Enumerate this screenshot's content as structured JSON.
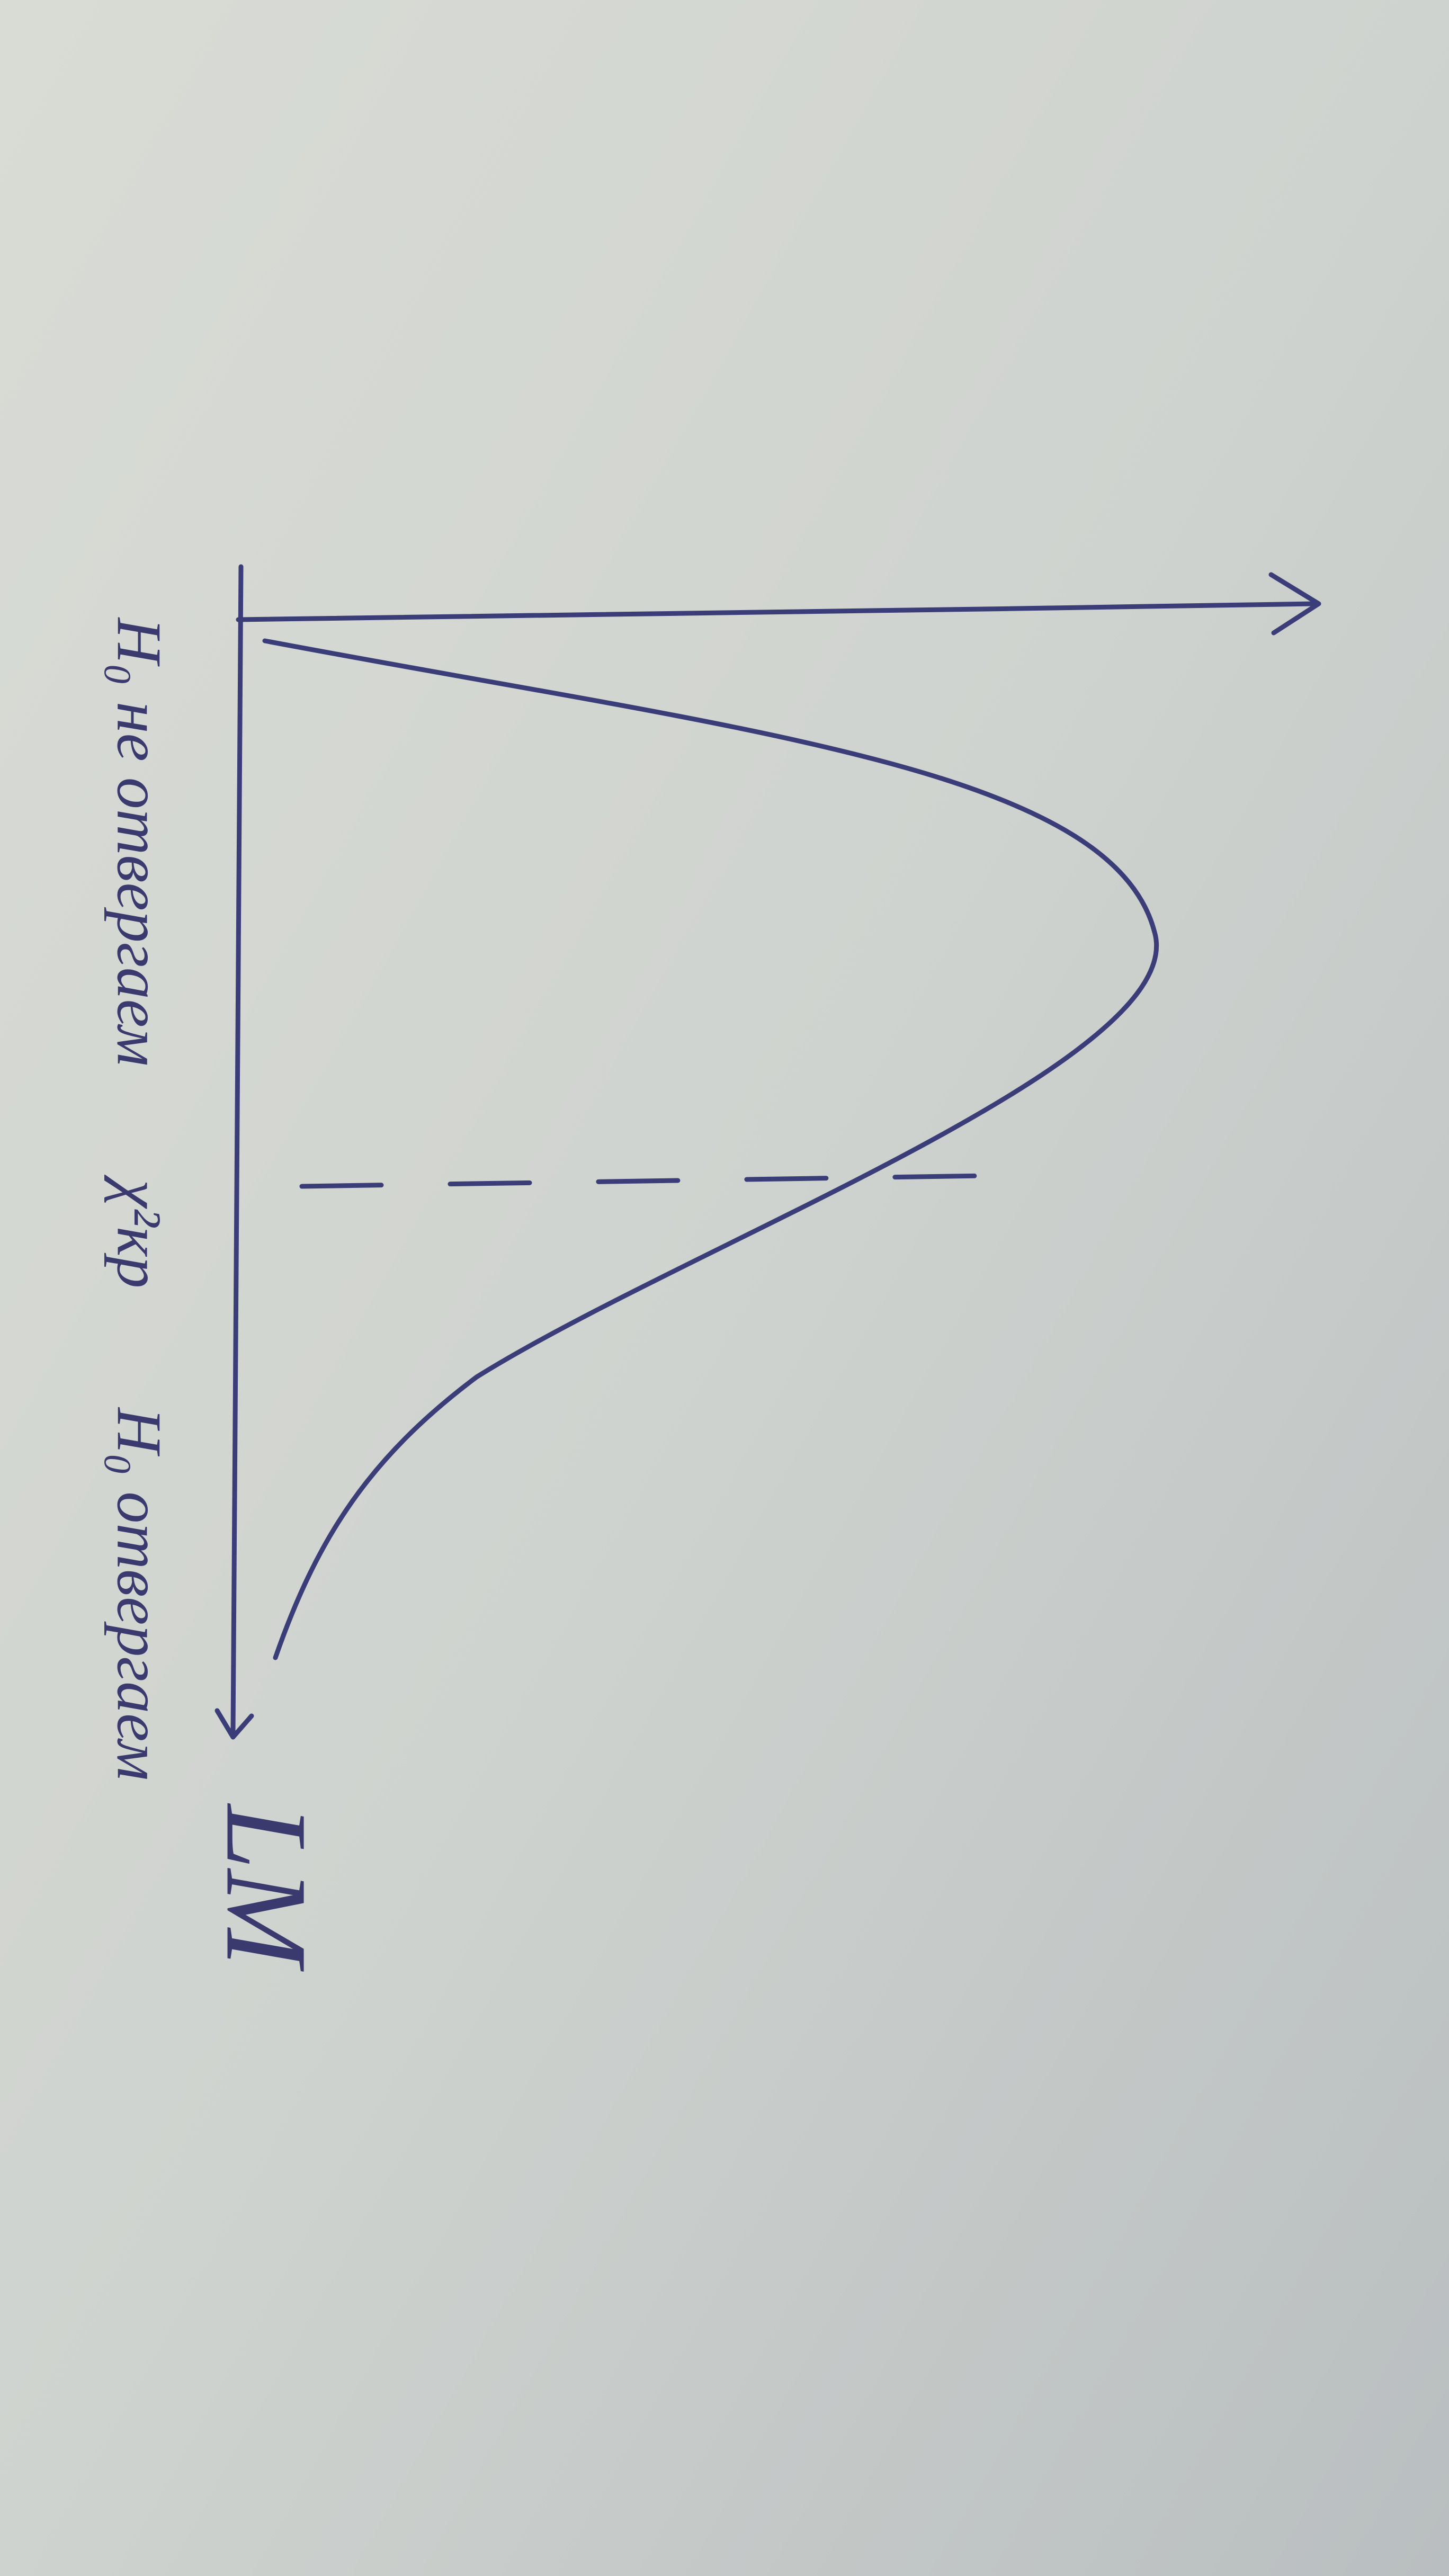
{
  "axis_label": "LM",
  "regions": {
    "left": "H₀ не отвергаем",
    "right": "H₀ отвергаем"
  },
  "critical_value": "χ²кр"
}
